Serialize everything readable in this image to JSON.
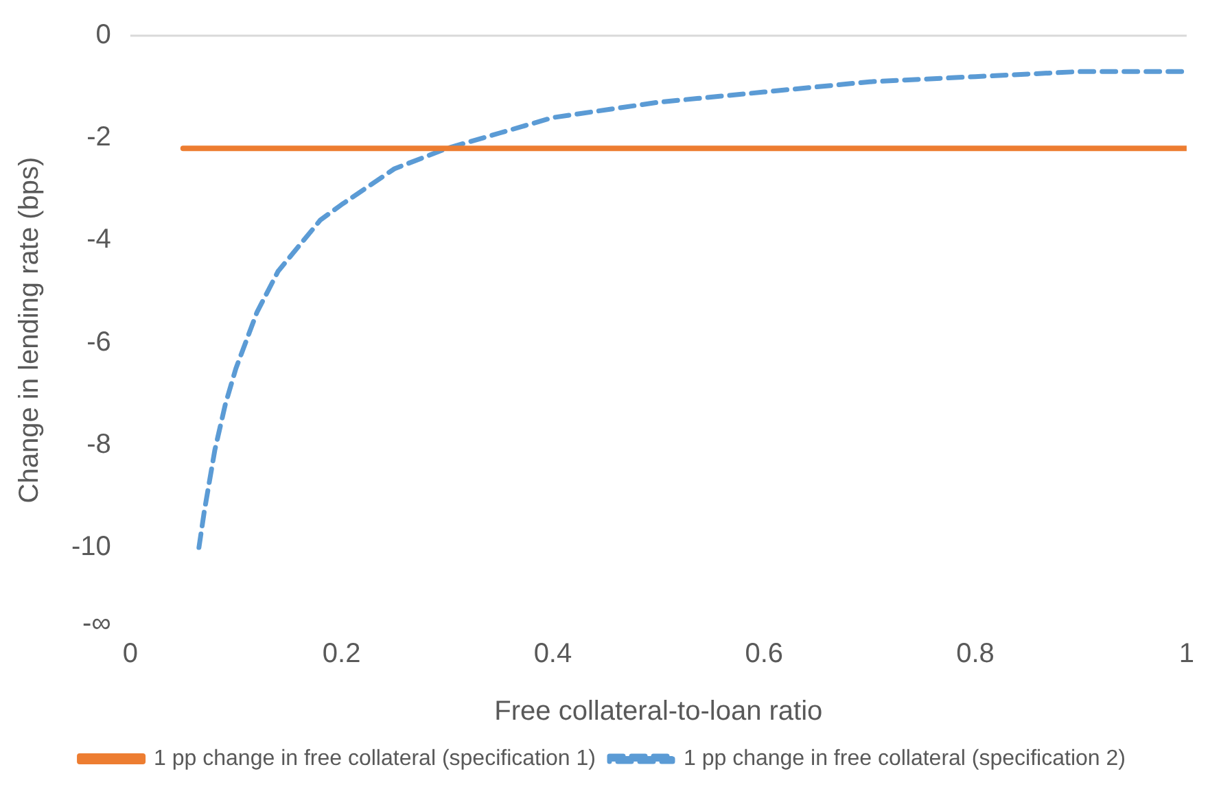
{
  "chart_data": {
    "type": "line",
    "xlabel": "Free collateral-to-loan ratio",
    "ylabel": "Change in lending rate (bps)",
    "xlim": [
      0,
      1
    ],
    "xticks": [
      0,
      0.2,
      0.4,
      0.6,
      0.8,
      1
    ],
    "ylim": [
      -11.5,
      0
    ],
    "yticks": [
      0,
      -2,
      -4,
      -6,
      -8,
      -10,
      {
        "value": -11.5,
        "label": "-∞"
      }
    ],
    "grid": false,
    "legend": "bottom",
    "marker": "none",
    "ref_lines": [
      {
        "axis": "y",
        "value": 0,
        "color": "#d9d9d9"
      }
    ],
    "series": [
      {
        "name": "1 pp change in free collateral (specification 1)",
        "color": "#ed7d31",
        "line_style": "solid",
        "x": [
          0.05,
          1
        ],
        "values": [
          -2.2,
          -2.2
        ]
      },
      {
        "name": "1 pp change in free collateral (specification 2)",
        "color": "#5b9bd5",
        "line_style": "dashed",
        "x": [
          0.065,
          0.07,
          0.08,
          0.09,
          0.1,
          0.12,
          0.14,
          0.16,
          0.18,
          0.2,
          0.25,
          0.3,
          0.35,
          0.4,
          0.5,
          0.6,
          0.7,
          0.8,
          0.9,
          1
        ],
        "values": [
          -10,
          -9.3,
          -8.1,
          -7.2,
          -6.5,
          -5.4,
          -4.6,
          -4.1,
          -3.6,
          -3.3,
          -2.6,
          -2.2,
          -1.9,
          -1.6,
          -1.3,
          -1.1,
          -0.9,
          -0.8,
          -0.7,
          -0.7
        ]
      }
    ]
  }
}
